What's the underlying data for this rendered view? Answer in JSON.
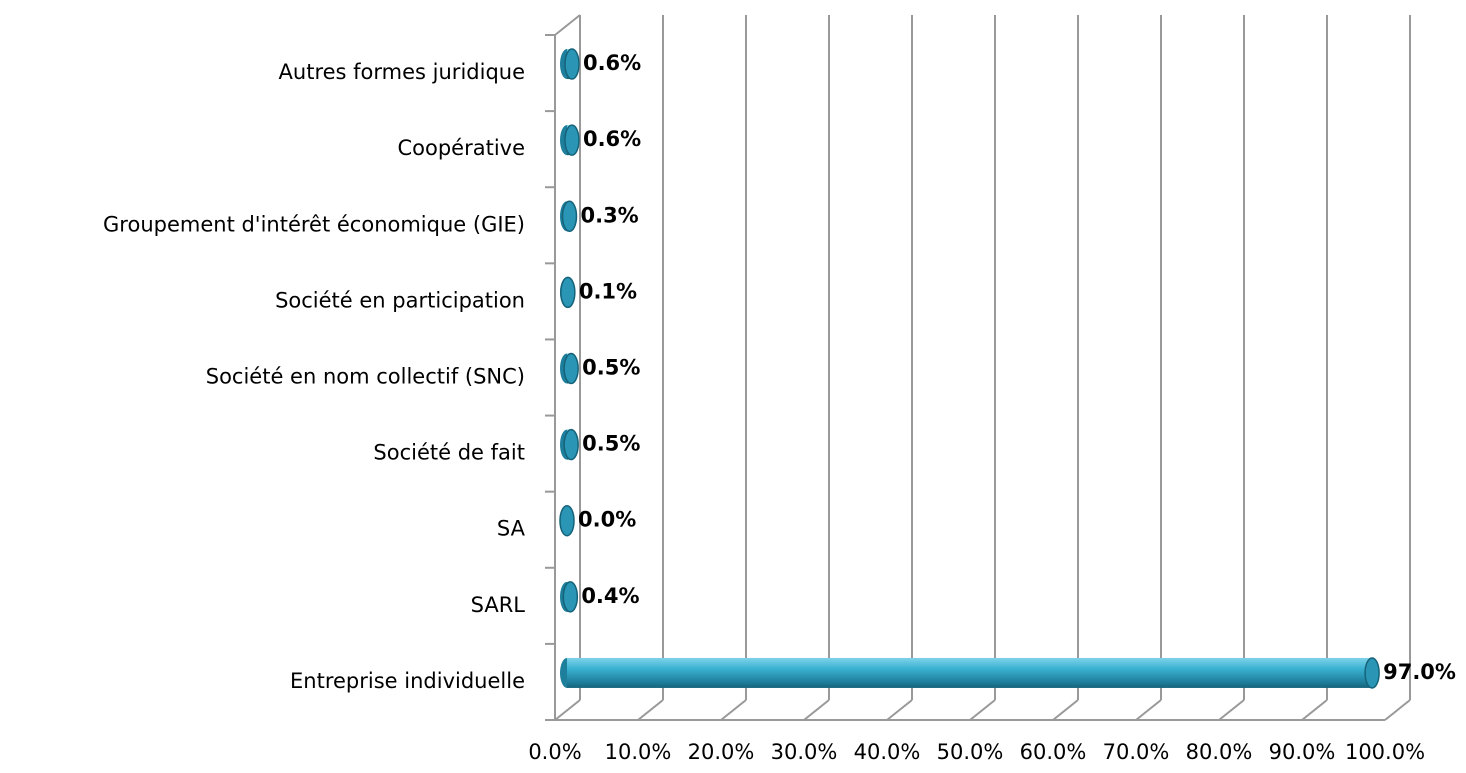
{
  "chart_data": {
    "type": "bar3d-horizontal",
    "categories": [
      "Autres formes juridique",
      "Coopérative",
      "Groupement d'intérêt économique (GIE)",
      "Société en participation",
      "Société en nom collectif (SNC)",
      "Société de fait",
      "SA",
      "SARL",
      "Entreprise individuelle"
    ],
    "values": [
      0.6,
      0.6,
      0.3,
      0.1,
      0.5,
      0.5,
      0.0,
      0.4,
      97.0
    ],
    "value_labels": [
      "0.6%",
      "0.6%",
      "0.3%",
      "0.1%",
      "0.5%",
      "0.5%",
      "0.0%",
      "0.4%",
      "97.0%"
    ],
    "color": "#2fa3c4",
    "xlim": [
      0,
      100
    ],
    "xticks": [
      {
        "value": 0,
        "label": "0.0%"
      },
      {
        "value": 10,
        "label": "10.0%"
      },
      {
        "value": 20,
        "label": "20.0%"
      },
      {
        "value": 30,
        "label": "30.0%"
      },
      {
        "value": 40,
        "label": "40.0%"
      },
      {
        "value": 50,
        "label": "50.0%"
      },
      {
        "value": 60,
        "label": "60.0%"
      },
      {
        "value": 70,
        "label": "70.0%"
      },
      {
        "value": 80,
        "label": "80.0%"
      },
      {
        "value": 90,
        "label": "90.0%"
      },
      {
        "value": 100,
        "label": "100.0%"
      }
    ],
    "grid": true
  }
}
